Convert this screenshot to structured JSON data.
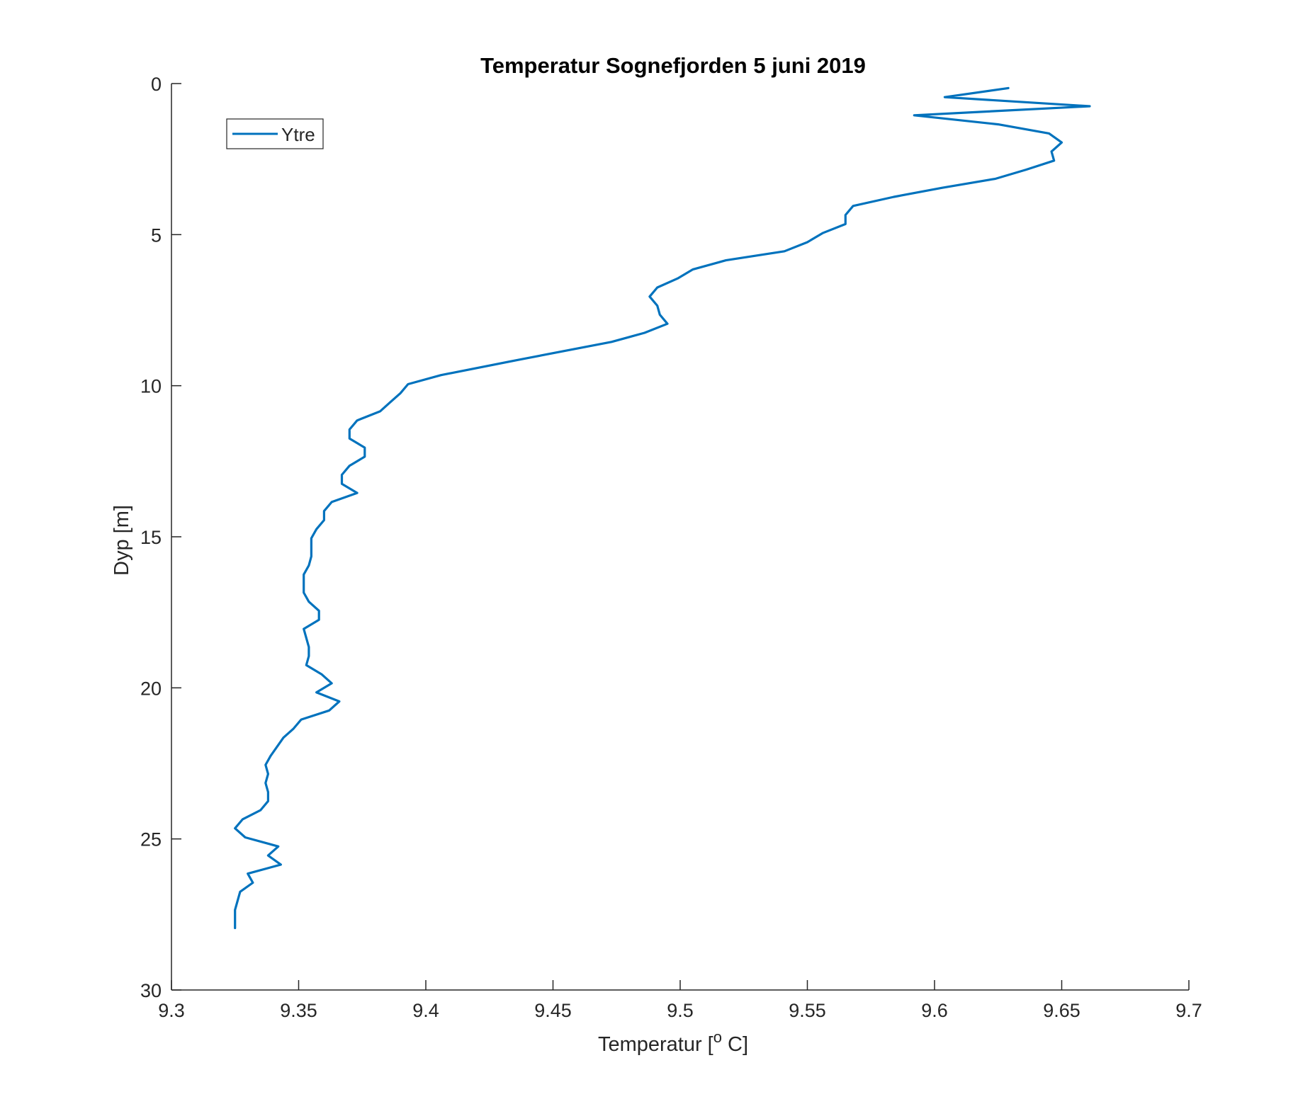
{
  "chart_data": {
    "type": "line",
    "title": "Temperatur Sognefjorden 5 juni 2019",
    "xlabel": "Temperatur [",
    "xlabel_sup": "o",
    "xlabel_end": " C]",
    "ylabel": "Dyp [m]",
    "xlim": [
      9.3,
      9.7
    ],
    "ylim": [
      0,
      30
    ],
    "y_reversed": true,
    "grid": false,
    "legend_position": "top-left",
    "xticks": [
      9.3,
      9.35,
      9.4,
      9.45,
      9.5,
      9.55,
      9.6,
      9.65,
      9.7
    ],
    "xtick_labels": [
      "9.3",
      "9.35",
      "9.4",
      "9.45",
      "9.5",
      "9.55",
      "9.6",
      "9.65",
      "9.7"
    ],
    "yticks": [
      0,
      5,
      10,
      15,
      20,
      25,
      30
    ],
    "ytick_labels": [
      "0",
      "5",
      "10",
      "15",
      "20",
      "25",
      "30"
    ],
    "series": [
      {
        "name": "Ytre",
        "color": "#0072BD",
        "x": [
          9.629,
          9.604,
          9.661,
          9.592,
          9.625,
          9.645,
          9.65,
          9.646,
          9.647,
          9.636,
          9.624,
          9.603,
          9.584,
          9.568,
          9.565,
          9.565,
          9.556,
          9.55,
          9.541,
          9.518,
          9.505,
          9.499,
          9.491,
          9.488,
          9.491,
          9.492,
          9.495,
          9.486,
          9.473,
          9.436,
          9.406,
          9.393,
          9.39,
          9.386,
          9.382,
          9.373,
          9.37,
          9.37,
          9.376,
          9.376,
          9.37,
          9.367,
          9.367,
          9.373,
          9.363,
          9.36,
          9.36,
          9.357,
          9.355,
          9.355,
          9.355,
          9.354,
          9.352,
          9.352,
          9.354,
          9.358,
          9.358,
          9.352,
          9.354,
          9.354,
          9.353,
          9.359,
          9.363,
          9.357,
          9.366,
          9.362,
          9.351,
          9.348,
          9.344,
          9.339,
          9.337,
          9.338,
          9.337,
          9.338,
          9.338,
          9.335,
          9.328,
          9.325,
          9.329,
          9.342,
          9.338,
          9.343,
          9.33,
          9.332,
          9.327,
          9.325,
          9.325
        ],
        "y": [
          0.15,
          0.45,
          0.75,
          1.05,
          1.35,
          1.65,
          1.95,
          2.25,
          2.55,
          2.85,
          3.15,
          3.45,
          3.75,
          4.05,
          4.35,
          4.65,
          4.95,
          5.25,
          5.55,
          5.85,
          6.15,
          6.45,
          6.75,
          7.05,
          7.35,
          7.65,
          7.95,
          8.25,
          8.55,
          9.15,
          9.65,
          9.95,
          10.25,
          10.55,
          10.85,
          11.15,
          11.45,
          11.75,
          12.05,
          12.35,
          12.65,
          12.95,
          13.25,
          13.55,
          13.85,
          14.15,
          14.45,
          14.75,
          15.05,
          15.35,
          15.65,
          15.95,
          16.25,
          16.85,
          17.15,
          17.45,
          17.75,
          18.05,
          18.65,
          18.95,
          19.25,
          19.55,
          19.85,
          20.15,
          20.45,
          20.75,
          21.05,
          21.35,
          21.65,
          22.25,
          22.55,
          22.85,
          23.15,
          23.45,
          23.75,
          24.05,
          24.35,
          24.65,
          24.95,
          25.25,
          25.55,
          25.85,
          26.15,
          26.45,
          26.75,
          27.35,
          27.95
        ]
      }
    ]
  }
}
